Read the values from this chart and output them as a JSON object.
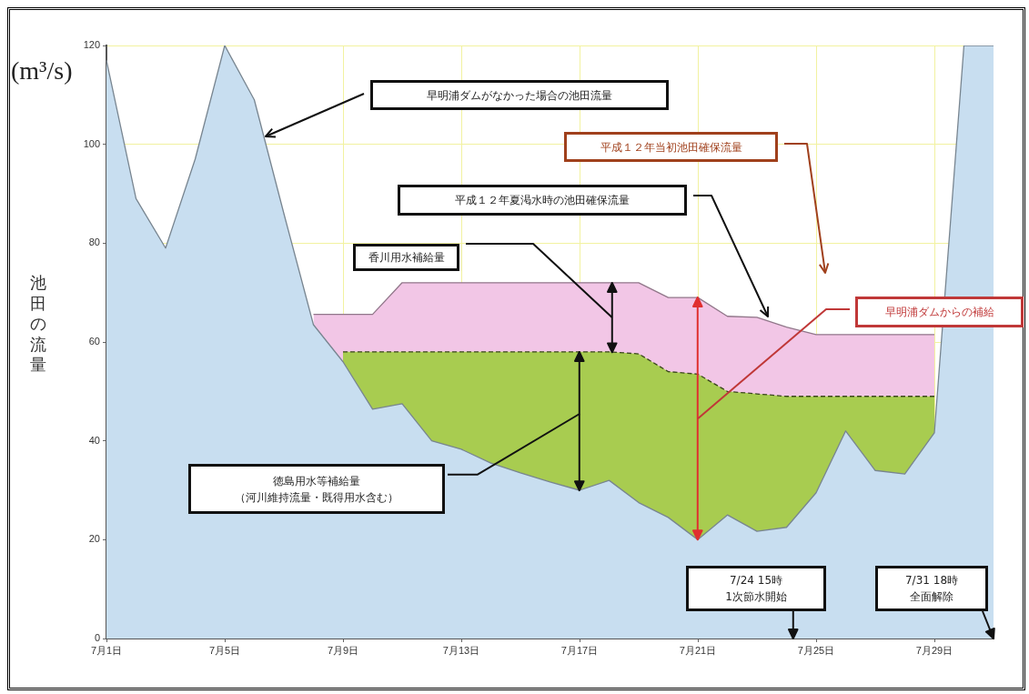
{
  "chart_data": {
    "type": "area",
    "ylabel": "池田の流量",
    "categories": [
      "7月1日",
      null,
      null,
      null,
      "7月5日",
      null,
      null,
      null,
      "7月9日",
      null,
      null,
      null,
      "7月13日",
      null,
      null,
      null,
      "7月17日",
      null,
      null,
      null,
      "7月21日",
      null,
      null,
      null,
      "7月25日",
      null,
      null,
      null,
      "7月29日",
      null,
      null
    ],
    "ylim": [
      0,
      120
    ],
    "yticks": [
      0,
      20,
      40,
      60,
      80,
      100,
      120
    ],
    "grid": true,
    "marker": "none",
    "series": [
      {
        "color": "#c8def0",
        "values": [
          117,
          89,
          79,
          97,
          120,
          109,
          86,
          63.5,
          56,
          46.4,
          47.5,
          40,
          38.3,
          35.5,
          33.5,
          31.7,
          30,
          32,
          27.5,
          24.5,
          20,
          25,
          21.7,
          22.5,
          29.5,
          42,
          34,
          33.3,
          41.6,
          120,
          120
        ]
      },
      {
        "color": "#a8cc50",
        "line_style": "dashed",
        "values": [
          null,
          null,
          null,
          null,
          null,
          null,
          null,
          null,
          58,
          58,
          58,
          58,
          58,
          58,
          58,
          58,
          58,
          58,
          57.6,
          54,
          53.5,
          50,
          49.5,
          49,
          49,
          49,
          49,
          49,
          49,
          null,
          null
        ]
      },
      {
        "color": "#f2c6e6",
        "values": [
          null,
          null,
          null,
          null,
          null,
          null,
          null,
          65.6,
          65.6,
          65.6,
          72,
          72,
          72,
          72,
          72,
          72,
          72,
          72,
          72,
          69,
          69,
          65.2,
          65,
          63,
          61.5,
          61.5,
          61.5,
          61.5,
          61.5,
          null,
          null
        ]
      }
    ],
    "annotations": [
      "(m³/s)",
      "早明浦ダムがなかった場合の池田流量",
      "平成１２年当初池田確保流量",
      "平成１２年夏渇水時の池田確保流量",
      "香川用水補給量",
      "早明浦ダムからの補給",
      "徳島用水等補給量（河川維持流量・既得用水含む）",
      "7/24 15時1次節水開始",
      "7/31 18時全面解除"
    ]
  }
}
